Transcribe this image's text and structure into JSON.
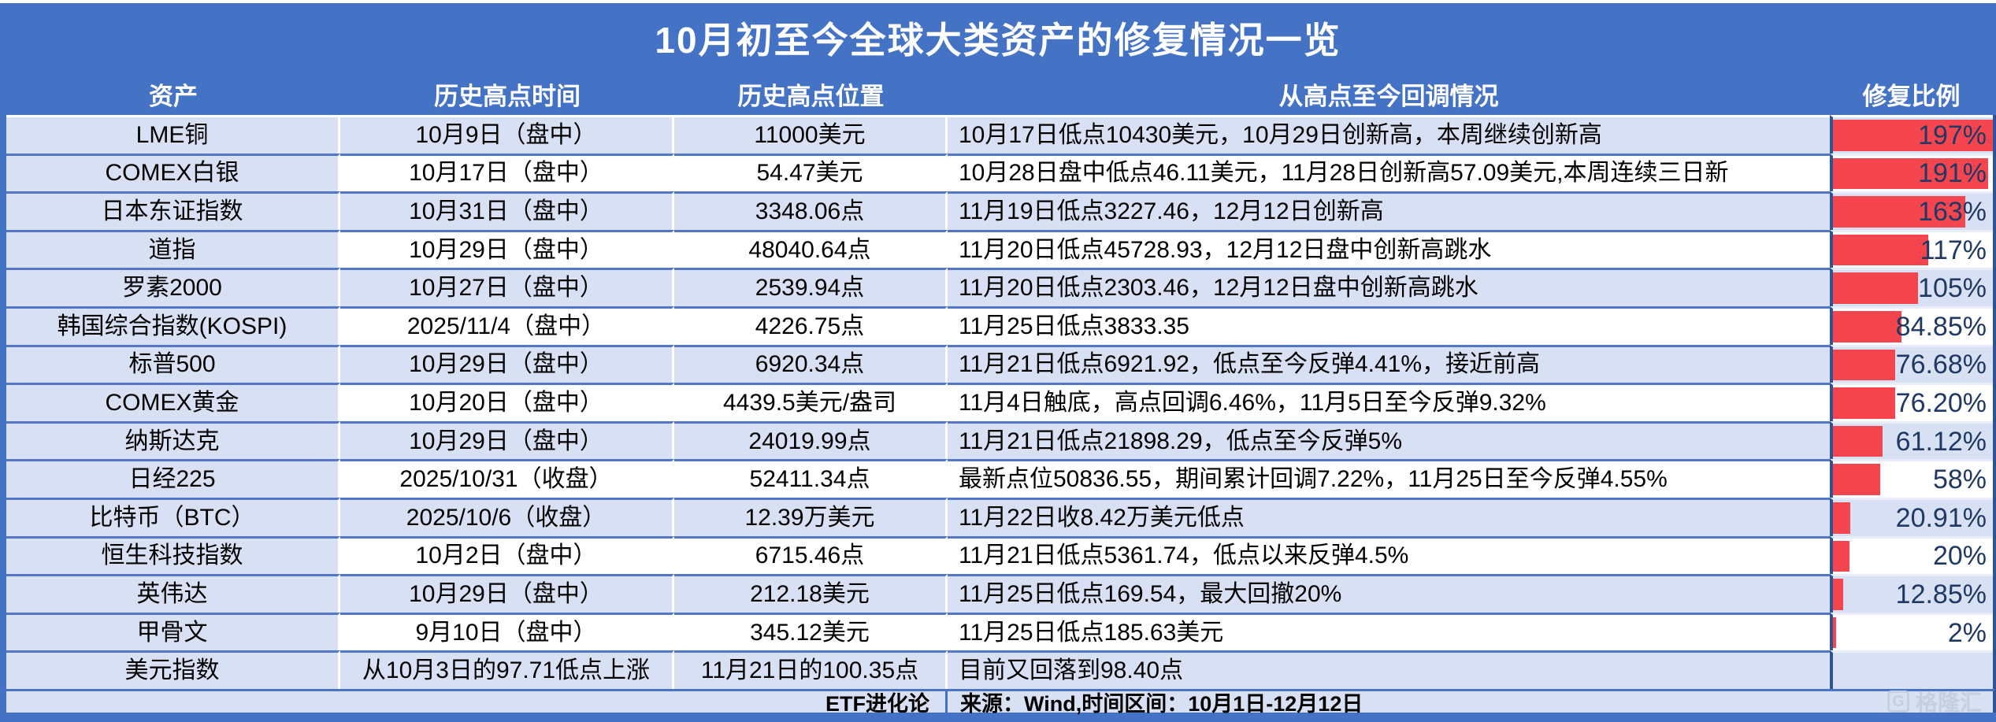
{
  "title": "10月初至今全球大类资产的修复情况一览",
  "colors": {
    "banner_blue": "#4472C4",
    "row_shade": "#D8E0F3",
    "bar_red": "#F5464F",
    "pct_navy": "#1F3864",
    "ratio_border_navy": "#2F5496"
  },
  "table": {
    "headers": [
      "资产",
      "历史高点时间",
      "历史高点位置",
      "从高点至今回调情况",
      "修复比例"
    ],
    "bar_max": 197,
    "rows": [
      {
        "asset": "LME铜",
        "high_time": "10月9日（盘中）",
        "high_level": "11000美元",
        "pullback": "10月17日低点10430美元，10月29日创新高，本周继续创新高",
        "ratio_label": "197%",
        "ratio_value": 197
      },
      {
        "asset": "COMEX白银",
        "high_time": "10月17日（盘中）",
        "high_level": "54.47美元",
        "pullback": "10月28日盘中低点46.11美元，11月28日创新高57.09美元,本周连续三日新",
        "ratio_label": "191%",
        "ratio_value": 191
      },
      {
        "asset": "日本东证指数",
        "high_time": "10月31日（盘中）",
        "high_level": "3348.06点",
        "pullback": "11月19日低点3227.46，12月12日创新高",
        "ratio_label": "163%",
        "ratio_value": 163
      },
      {
        "asset": "道指",
        "high_time": "10月29日（盘中）",
        "high_level": "48040.64点",
        "pullback": "11月20日低点45728.93，12月12日盘中创新高跳水",
        "ratio_label": "117%",
        "ratio_value": 117
      },
      {
        "asset": "罗素2000",
        "high_time": "10月27日（盘中）",
        "high_level": "2539.94点",
        "pullback": "11月20日低点2303.46，12月12日盘中创新高跳水",
        "ratio_label": "105%",
        "ratio_value": 105
      },
      {
        "asset": "韩国综合指数(KOSPI)",
        "high_time": "2025/11/4（盘中）",
        "high_level": "4226.75点",
        "pullback": "11月25日低点3833.35",
        "ratio_label": "84.85%",
        "ratio_value": 84.85
      },
      {
        "asset": "标普500",
        "high_time": "10月29日（盘中）",
        "high_level": "6920.34点",
        "pullback": "11月21日低点6921.92，低点至今反弹4.41%，接近前高",
        "ratio_label": "76.68%",
        "ratio_value": 76.68
      },
      {
        "asset": "COMEX黄金",
        "high_time": "10月20日（盘中）",
        "high_level": "4439.5美元/盎司",
        "pullback": "11月4日触底，高点回调6.46%，11月5日至今反弹9.32%",
        "ratio_label": "76.20%",
        "ratio_value": 76.2
      },
      {
        "asset": "纳斯达克",
        "high_time": "10月29日（盘中）",
        "high_level": "24019.99点",
        "pullback": "11月21日低点21898.29，低点至今反弹5%",
        "ratio_label": "61.12%",
        "ratio_value": 61.12
      },
      {
        "asset": "日经225",
        "high_time": "2025/10/31（收盘）",
        "high_level": "52411.34点",
        "pullback": "最新点位50836.55，期间累计回调7.22%，11月25日至今反弹4.55%",
        "ratio_label": "58%",
        "ratio_value": 58
      },
      {
        "asset": "比特币（BTC）",
        "high_time": "2025/10/6（收盘）",
        "high_level": "12.39万美元",
        "pullback": "11月22日收8.42万美元低点",
        "ratio_label": "20.91%",
        "ratio_value": 20.91
      },
      {
        "asset": "恒生科技指数",
        "high_time": "10月2日（盘中）",
        "high_level": "6715.46点",
        "pullback": "11月21日低点5361.74，低点以来反弹4.5%",
        "ratio_label": "20%",
        "ratio_value": 20
      },
      {
        "asset": "英伟达",
        "high_time": "10月29日（盘中）",
        "high_level": "212.18美元",
        "pullback": "11月25日低点169.54，最大回撤20%",
        "ratio_label": "12.85%",
        "ratio_value": 12.85
      },
      {
        "asset": "甲骨文",
        "high_time": "9月10日（盘中）",
        "high_level": "345.12美元",
        "pullback": "11月25日低点185.63美元",
        "ratio_label": "2%",
        "ratio_value": 2
      },
      {
        "asset": "美元指数",
        "high_time": "从10月3日的97.71低点上涨",
        "high_level": "11月21日的100.35点",
        "pullback": "目前又回落到98.40点",
        "ratio_label": "",
        "ratio_value": 0
      }
    ]
  },
  "footer": {
    "brand": "ETF进化论",
    "source": "来源：Wind,时间区间：10月1日-12月12日",
    "watermark_logo": "G",
    "watermark": "格隆汇"
  }
}
